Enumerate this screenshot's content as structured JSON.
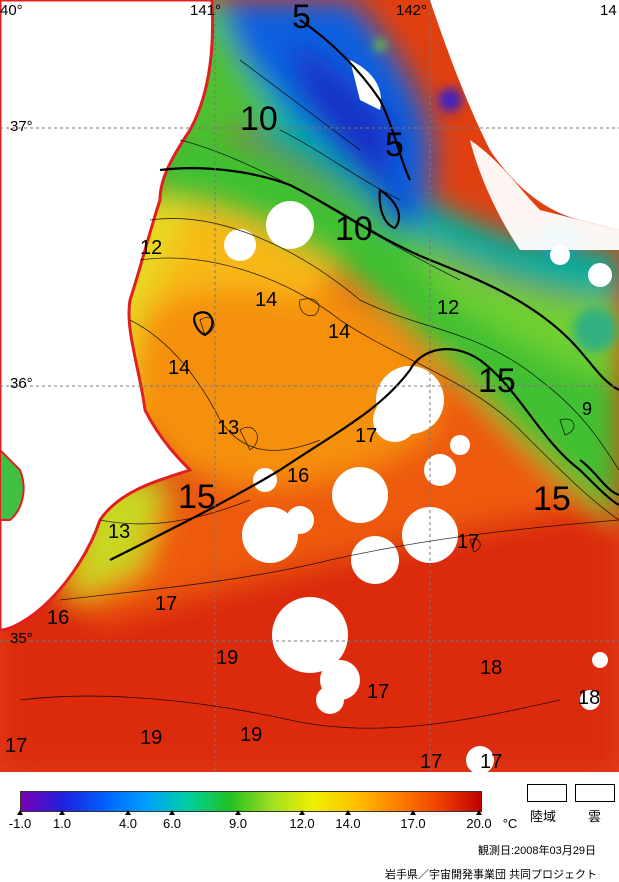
{
  "map": {
    "lon_labels": [
      "40°",
      "141°",
      "142°",
      "14"
    ],
    "lat_labels": [
      "37°",
      "36°",
      "35°"
    ],
    "contour_labels": [
      {
        "text": "5",
        "size": 34
      },
      {
        "text": "10",
        "size": 34
      },
      {
        "text": "5",
        "size": 34
      },
      {
        "text": "10",
        "size": 34
      },
      {
        "text": "12",
        "size": 20
      },
      {
        "text": "14",
        "size": 20
      },
      {
        "text": "14",
        "size": 20
      },
      {
        "text": "12",
        "size": 20
      },
      {
        "text": "14",
        "size": 20
      },
      {
        "text": "15",
        "size": 34
      },
      {
        "text": "9",
        "size": 18
      },
      {
        "text": "13",
        "size": 20
      },
      {
        "text": "17",
        "size": 20
      },
      {
        "text": "16",
        "size": 20
      },
      {
        "text": "15",
        "size": 34
      },
      {
        "text": "15",
        "size": 34
      },
      {
        "text": "13",
        "size": 20
      },
      {
        "text": "17",
        "size": 20
      },
      {
        "text": "16",
        "size": 20
      },
      {
        "text": "17",
        "size": 20
      },
      {
        "text": "19",
        "size": 20
      },
      {
        "text": "18",
        "size": 20
      },
      {
        "text": "17",
        "size": 20
      },
      {
        "text": "18",
        "size": 20
      },
      {
        "text": "17",
        "size": 20
      },
      {
        "text": "19",
        "size": 20
      },
      {
        "text": "19",
        "size": 20
      },
      {
        "text": "17",
        "size": 20
      },
      {
        "text": "17",
        "size": 20
      }
    ],
    "colors": {
      "land_outline": "#e02020",
      "cloud": "#ffffff",
      "land": "#ffffff"
    }
  },
  "scale": {
    "ticks": [
      "-1.0",
      "1.0",
      "4.0",
      "6.0",
      "9.0",
      "12.0",
      "14.0",
      "17.0",
      "20.0"
    ],
    "unit": "°C",
    "gradient": [
      "#7a00b4",
      "#2020e0",
      "#0060ff",
      "#00a0ff",
      "#00d0a0",
      "#20c020",
      "#a0e020",
      "#f0f000",
      "#ffc000",
      "#ff8000",
      "#f04000",
      "#c00000"
    ]
  },
  "legend": {
    "land": "陸域",
    "cloud": "雲"
  },
  "observation_date": "観測日:2008年03月29日",
  "credit": "岩手県／宇宙開発事業団  共同プロジェクト"
}
